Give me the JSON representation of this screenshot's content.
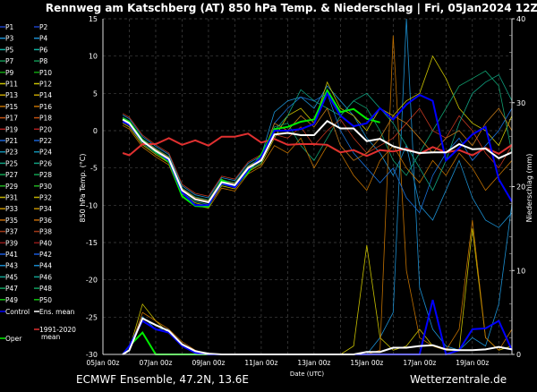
{
  "chart_data": {
    "type": "line",
    "title": "Rennweg am Katschberg  (AT)  850 hPa Temp. & Niederschlag | Fri, 05Jan2024 12Z",
    "xlabel": "Date (UTC)",
    "ylabel": "850 hPa Temp. (°C)",
    "y2label": "Niederschlag (mm)",
    "ylim": [
      -30,
      15
    ],
    "y2lim": [
      0,
      40
    ],
    "yticks": [
      15,
      10,
      5,
      0,
      -5,
      -10,
      -15,
      -20,
      -25,
      -30
    ],
    "y2ticks": [
      0,
      10,
      20,
      30,
      40
    ],
    "xticks": [
      "05Jan 00z",
      "07Jan 00z",
      "09Jan 00z",
      "11Jan 00z",
      "13Jan 00z",
      "15Jan 00z",
      "17Jan 00z",
      "19Jan 00z"
    ],
    "xlim": [
      "05Jan 00z",
      "20Jan 12z"
    ],
    "grid": true,
    "legend_position": "left",
    "times": [
      "05Jan 18z",
      "06Jan 00z",
      "06Jan 12z",
      "07Jan 00z",
      "07Jan 12z",
      "08Jan 00z",
      "08Jan 12z",
      "09Jan 00z",
      "09Jan 12z",
      "10Jan 00z",
      "10Jan 12z",
      "11Jan 00z",
      "11Jan 12z",
      "12Jan 00z",
      "12Jan 12z",
      "13Jan 00z",
      "13Jan 12z",
      "14Jan 00z",
      "14Jan 12z",
      "15Jan 00z",
      "15Jan 12z",
      "16Jan 00z",
      "16Jan 12z",
      "17Jan 00z",
      "17Jan 12z",
      "18Jan 00z",
      "18Jan 12z",
      "19Jan 00z",
      "19Jan 12z",
      "20Jan 00z",
      "20Jan 12z"
    ],
    "members": [
      {
        "name": "P3",
        "color": "#1c8fd0",
        "temp": [
          2.1,
          1.6,
          -0.8,
          -2.1,
          -3.2,
          -7.4,
          -8.6,
          -9.0,
          -6.3,
          -6.7,
          -4.4,
          -3.4,
          2.5,
          4.0,
          4.5,
          3.0,
          6.0,
          4.0,
          2.0,
          -1.0,
          -3.0,
          -6.0,
          -2.0,
          -10.0,
          -12.0,
          -8.0,
          -4.0,
          -9.0,
          -12.0,
          -13.0,
          -11.0
        ],
        "precip": [
          0,
          0.4,
          4.5,
          3,
          3,
          1,
          0.3,
          0,
          0,
          0,
          0,
          0,
          0,
          0,
          0,
          0,
          0,
          0,
          0,
          0,
          2,
          5,
          40,
          8,
          3,
          1,
          0.5,
          2,
          1,
          6,
          18
        ]
      },
      {
        "name": "P12",
        "color": "#c8c000",
        "temp": [
          1.0,
          0.5,
          -1.9,
          -3.2,
          -4.3,
          -8.5,
          -9.7,
          -10.1,
          -7.4,
          -7.8,
          -5.5,
          -4.5,
          -1.0,
          2.0,
          3.0,
          1.0,
          6.5,
          3.0,
          2.0,
          0.0,
          3.0,
          2.0,
          4.0,
          5.0,
          10.0,
          7.0,
          3.0,
          1.0,
          0.0,
          -2.0,
          2.0
        ],
        "precip": [
          0,
          0.6,
          6,
          4,
          2.5,
          1,
          0.3,
          0,
          0,
          0,
          0,
          0,
          0,
          0,
          0,
          0,
          0,
          0,
          1,
          13,
          2,
          0.5,
          1,
          3,
          1,
          0.5,
          0.5,
          15,
          2,
          0.5,
          1
        ]
      },
      {
        "name": "P26",
        "color": "#10a070",
        "temp": [
          1.8,
          1.3,
          -1.1,
          -2.4,
          -3.5,
          -7.7,
          -8.9,
          -9.3,
          -6.6,
          -7.0,
          -4.7,
          -3.7,
          0.5,
          1.0,
          -2.0,
          -4.0,
          -1.0,
          2.0,
          4.0,
          3.0,
          0.0,
          -4.0,
          -6.0,
          -3.0,
          0.0,
          3.0,
          6.0,
          7.0,
          8.0,
          6.0,
          -3.0
        ]
      },
      {
        "name": "P16",
        "color": "#c07000",
        "temp": [
          0.7,
          0.2,
          -2.2,
          -3.5,
          -4.6,
          -8.8,
          -10.0,
          -10.4,
          -7.7,
          -8.1,
          -5.8,
          -4.8,
          -2.0,
          -3.0,
          -1.0,
          -5.0,
          -2.0,
          -3.0,
          -6.0,
          -8.0,
          -4.0,
          -2.0,
          -5.0,
          -7.0,
          -4.0,
          -6.0,
          -3.0,
          -5.0,
          -8.0,
          -6.0,
          -4.0
        ],
        "precip": [
          0,
          0.5,
          5,
          4,
          3,
          1.5,
          0.5,
          0,
          0,
          0,
          0,
          0,
          0,
          0,
          0,
          0,
          0,
          0,
          0,
          0,
          0.5,
          38,
          10,
          2,
          1,
          0.5,
          3,
          16,
          2,
          0.5,
          3
        ]
      },
      {
        "name": "P41",
        "color": "#1870d8",
        "temp": [
          1.5,
          1.0,
          -1.4,
          -2.7,
          -3.8,
          -8.0,
          -9.2,
          -9.6,
          -6.9,
          -7.3,
          -5.0,
          -4.0,
          1.0,
          3.0,
          4.5,
          4.0,
          5.0,
          0.0,
          -3.0,
          -5.0,
          -7.0,
          -5.0,
          -9.0,
          -11.0,
          -6.0,
          -3.0,
          -1.0,
          -4.0,
          -2.0,
          0.0,
          3.0
        ]
      },
      {
        "name": "P18",
        "color": "#c03820",
        "temp": [
          2.3,
          1.8,
          -0.6,
          -1.9,
          -3.0,
          -7.2,
          -8.4,
          -8.8,
          -6.1,
          -6.5,
          -4.2,
          -3.2,
          -0.5,
          -1.0,
          0.5,
          -2.0,
          0.0,
          1.5,
          -1.0,
          -3.0,
          -2.0,
          -1.0,
          1.0,
          3.0,
          0.0,
          -1.0,
          2.0,
          0.0,
          -3.0,
          -5.0,
          -2.0
        ]
      },
      {
        "name": "P44",
        "color": "#10a080",
        "temp": [
          1.2,
          0.7,
          -1.7,
          -3.0,
          -4.1,
          -8.3,
          -9.5,
          -9.9,
          -7.2,
          -7.6,
          -5.3,
          -4.3,
          0.0,
          2.0,
          5.5,
          4.0,
          3.0,
          2.0,
          4.0,
          5.0,
          3.0,
          1.0,
          -2.0,
          -5.0,
          -8.0,
          -4.0,
          1.0,
          5.0,
          6.5,
          7.5,
          4.0
        ]
      },
      {
        "name": "P35",
        "color": "#c07818",
        "temp": [
          1.7,
          1.2,
          -1.2,
          -2.5,
          -3.6,
          -7.8,
          -9.0,
          -9.4,
          -6.7,
          -7.1,
          -4.8,
          -3.8,
          1.0,
          0.0,
          2.0,
          0.5,
          3.0,
          -2.0,
          -4.0,
          -3.0,
          -1.0,
          2.0,
          1.0,
          -1.0,
          -3.0,
          -1.0,
          0.0,
          -2.0,
          1.0,
          3.0,
          0.0
        ]
      }
    ],
    "control": {
      "name": "Control",
      "color": "#0000ff",
      "temp": [
        1.2,
        0.8,
        -1.4,
        -2.7,
        -4.0,
        -8.3,
        -10.0,
        -10.0,
        -7.0,
        -7.6,
        -5.3,
        -3.5,
        0,
        0,
        0.2,
        0.9,
        5.0,
        2.0,
        0.6,
        1.0,
        3.0,
        1.5,
        3.5,
        4.8,
        4.0,
        -4.0,
        -2.3,
        -0.5,
        0.5,
        -6.5,
        -9.5
      ],
      "precip": [
        0,
        1,
        4,
        3,
        2.6,
        1,
        0.2,
        0,
        0,
        0,
        0,
        0,
        0,
        0,
        0,
        0,
        0,
        0,
        0,
        0,
        0,
        0,
        0,
        0,
        6.5,
        0,
        0.5,
        3,
        3.1,
        4,
        0.5
      ]
    },
    "oper": {
      "name": "Oper",
      "color": "#00ee00",
      "temp": [
        1.6,
        1.2,
        -1.3,
        -2.8,
        -4.2,
        -8.8,
        -10.1,
        -10.2,
        -6.6,
        -7.5,
        -5.6,
        -3.2,
        0.2,
        0.5,
        1.2,
        1.5,
        5.4,
        2.5,
        2.9,
        1.6,
        1.1
      ],
      "precip": [
        0,
        1,
        2.6,
        0,
        0,
        0,
        0,
        0,
        0,
        0,
        0,
        0,
        0,
        0,
        0,
        0,
        0,
        0,
        0,
        0,
        0
      ]
    },
    "ens_mean": {
      "name": "Ens. mean",
      "color": "#ffffff",
      "temp": [
        1.5,
        1.0,
        -1.4,
        -2.7,
        -3.8,
        -8.0,
        -9.2,
        -9.6,
        -6.9,
        -7.3,
        -5.0,
        -4.0,
        -0.5,
        -0.3,
        -0.6,
        -0.6,
        1.3,
        0.3,
        0.3,
        -1.4,
        -1.1,
        -2.1,
        -2.6,
        -3.0,
        -2.9,
        -2.9,
        -1.8,
        -2.5,
        -2.4,
        -3.7,
        -2.9
      ],
      "precip": [
        0,
        0.5,
        4.3,
        3.5,
        2.8,
        1.2,
        0.4,
        0.1,
        0,
        0,
        0,
        0,
        0,
        0,
        0,
        0,
        0,
        0,
        0,
        0.3,
        0.3,
        0.8,
        0.8,
        1.0,
        1.1,
        0.6,
        0.5,
        0.5,
        0.6,
        0.9,
        0.6
      ]
    },
    "climate_mean": {
      "name": "1991-2020 mean",
      "color": "#e03030",
      "temp": [
        -3.0,
        -3.3,
        -1.8,
        -1.8,
        -1.0,
        -1.9,
        -1.3,
        -2.0,
        -0.8,
        -0.8,
        -0.4,
        -1.6,
        -1.1,
        -1.9,
        -1.8,
        -1.8,
        -1.9,
        -2.9,
        -2.6,
        -3.4,
        -2.6,
        -2.8,
        -2.4,
        -3.1,
        -2.2,
        -2.9,
        -2.6,
        -3.3,
        -2.3,
        -3.1,
        -1.9
      ]
    }
  },
  "legend": {
    "members": [
      "P1",
      "P2",
      "P3",
      "P4",
      "P5",
      "P6",
      "P7",
      "P8",
      "P9",
      "P10",
      "P11",
      "P12",
      "P13",
      "P14",
      "P15",
      "P16",
      "P17",
      "P18",
      "P19",
      "P20",
      "P21",
      "P22",
      "P23",
      "P24",
      "P25",
      "P26",
      "P27",
      "P28",
      "P29",
      "P30",
      "P31",
      "P32",
      "P33",
      "P34",
      "P35",
      "P36",
      "P37",
      "P38",
      "P39",
      "P40",
      "P41",
      "P42",
      "P43",
      "P44",
      "P45",
      "P46",
      "P47",
      "P48",
      "P49",
      "P50"
    ],
    "palette": [
      "#1a3fc0",
      "#1c8fd0",
      "#10b0a0",
      "#109050",
      "#10a010",
      "#c8c000",
      "#c0a000",
      "#c07000",
      "#c05010",
      "#b02020",
      "#1860d0",
      "#1090b0",
      "#10a080",
      "#10a050",
      "#20b020",
      "#c0b000",
      "#c09000",
      "#c06808",
      "#a03818",
      "#901818",
      "#1858d8",
      "#1888c8",
      "#10a090",
      "#10a060",
      "#10c010"
    ],
    "control": "Control",
    "ens_mean": "Ens. mean",
    "climate": "1991-2020",
    "climate_line2": "mean",
    "oper": "Oper"
  },
  "footer": {
    "source": "ECMWF Ensemble, 47.2N, 13.6E",
    "brand": "Wetterzentrale.de"
  }
}
